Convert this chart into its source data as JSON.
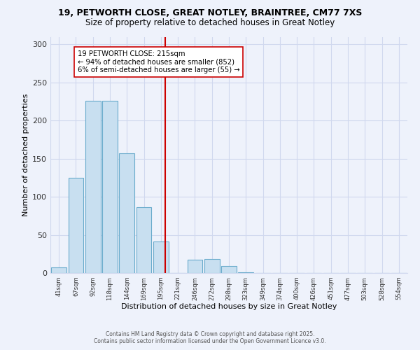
{
  "title_line1": "19, PETWORTH CLOSE, GREAT NOTLEY, BRAINTREE, CM77 7XS",
  "title_line2": "Size of property relative to detached houses in Great Notley",
  "bar_labels": [
    "41sqm",
    "67sqm",
    "92sqm",
    "118sqm",
    "144sqm",
    "169sqm",
    "195sqm",
    "221sqm",
    "246sqm",
    "272sqm",
    "298sqm",
    "323sqm",
    "349sqm",
    "374sqm",
    "400sqm",
    "426sqm",
    "451sqm",
    "477sqm",
    "503sqm",
    "528sqm",
    "554sqm"
  ],
  "bar_values": [
    7,
    125,
    226,
    226,
    157,
    86,
    41,
    0,
    17,
    18,
    9,
    1,
    0,
    0,
    0,
    0,
    0,
    0,
    0,
    0,
    0
  ],
  "bar_color": "#c8dff0",
  "bar_edge_color": "#6aabcc",
  "vline_color": "#cc0000",
  "annotation_title": "19 PETWORTH CLOSE: 215sqm",
  "annotation_line1": "← 94% of detached houses are smaller (852)",
  "annotation_line2": "6% of semi-detached houses are larger (55) →",
  "annotation_box_color": "#ffffff",
  "annotation_box_edge": "#cc0000",
  "xlabel": "Distribution of detached houses by size in Great Notley",
  "ylabel": "Number of detached properties",
  "ylim": [
    0,
    310
  ],
  "yticks": [
    0,
    50,
    100,
    150,
    200,
    250,
    300
  ],
  "footnote1": "Contains HM Land Registry data © Crown copyright and database right 2025.",
  "footnote2": "Contains public sector information licensed under the Open Government Licence v3.0.",
  "background_color": "#eef2fb",
  "grid_color": "#d0d8ee"
}
